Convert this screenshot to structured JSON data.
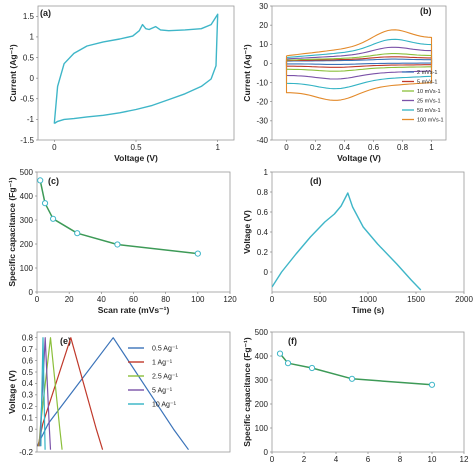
{
  "chart_data": [
    {
      "id": "a",
      "panel_label": "(a)",
      "type": "line",
      "xlabel": "Voltage (V)",
      "ylabel": "Current (Ag⁻¹)",
      "xlim": [
        -0.1,
        1.1
      ],
      "ylim": [
        -1.5,
        1.75
      ],
      "xticks": [
        "0",
        "0.5",
        "1"
      ],
      "yticks": [
        "-1.5",
        "-1",
        "-0.5",
        "0",
        "0.5",
        "1",
        "1.5"
      ],
      "color": "#3fb6c8",
      "series": [
        {
          "x": [
            0,
            0.02,
            0.06,
            0.12,
            0.2,
            0.3,
            0.4,
            0.48,
            0.52,
            0.54,
            0.56,
            0.58,
            0.62,
            0.65,
            0.7,
            0.8,
            0.9,
            0.96,
            1.0,
            0.99,
            0.96,
            0.9,
            0.8,
            0.7,
            0.6,
            0.5,
            0.4,
            0.3,
            0.2,
            0.12,
            0.06,
            0.02,
            0
          ],
          "y": [
            -1.1,
            -0.2,
            0.35,
            0.6,
            0.78,
            0.88,
            0.95,
            1.02,
            1.15,
            1.3,
            1.2,
            1.18,
            1.25,
            1.17,
            1.15,
            1.17,
            1.2,
            1.3,
            1.55,
            0.3,
            -0.02,
            -0.2,
            -0.38,
            -0.52,
            -0.66,
            -0.76,
            -0.84,
            -0.9,
            -0.94,
            -0.98,
            -1.0,
            -1.05,
            -1.1
          ]
        }
      ]
    },
    {
      "id": "b",
      "panel_label": "(b)",
      "type": "line",
      "xlabel": "Voltage (V)",
      "ylabel": "Current (Ag⁻¹)",
      "xlim": [
        -0.1,
        1.1
      ],
      "ylim": [
        -40,
        30
      ],
      "xticks": [
        "0",
        "0.2",
        "0.4",
        "0.6",
        "0.8",
        "1"
      ],
      "yticks": [
        "-40",
        "-30",
        "-20",
        "-10",
        "0",
        "10",
        "20",
        "30"
      ],
      "legend_position": "right",
      "series": [
        {
          "name": "2 mVs-1",
          "color": "#3b73b9",
          "amp": 1.5
        },
        {
          "name": "5 mVs-1",
          "color": "#c0392b",
          "amp": 3
        },
        {
          "name": "10 mVs-1",
          "color": "#8bbf3b",
          "amp": 5
        },
        {
          "name": "25 mVs-1",
          "color": "#7b52a8",
          "amp": 9
        },
        {
          "name": "50 mVs-1",
          "color": "#33b3c4",
          "amp": 14
        },
        {
          "name": "100 mVs-1",
          "color": "#e38a2b",
          "amp": 20
        }
      ]
    },
    {
      "id": "c",
      "panel_label": "(c)",
      "type": "line",
      "xlabel": "Scan rate (mVs⁻¹)",
      "ylabel": "Specific capacitance (Fg⁻¹)",
      "xlim": [
        0,
        120
      ],
      "ylim": [
        0,
        500
      ],
      "xticks": [
        "0",
        "20",
        "40",
        "60",
        "80",
        "100",
        "120"
      ],
      "yticks": [
        "0",
        "100",
        "200",
        "300",
        "400",
        "500"
      ],
      "color": "#3d9a57",
      "marker_color": "#3fb6c8",
      "series": [
        {
          "x": [
            2,
            5,
            10,
            25,
            50,
            100
          ],
          "y": [
            465,
            370,
            305,
            245,
            198,
            160
          ]
        }
      ]
    },
    {
      "id": "d",
      "panel_label": "(d)",
      "type": "line",
      "xlabel": "Time (s)",
      "ylabel": "Voltage (V)",
      "xlim": [
        0,
        2000
      ],
      "ylim": [
        -0.2,
        1.0
      ],
      "xticks": [
        "0",
        "500",
        "1000",
        "1500",
        "2000"
      ],
      "yticks": [
        "0",
        "0.2",
        "0.4",
        "0.6",
        "0.8",
        "1"
      ],
      "color": "#3fb6c8",
      "series": [
        {
          "x": [
            0,
            100,
            250,
            400,
            550,
            650,
            720,
            790,
            840,
            950,
            1100,
            1300,
            1450,
            1550
          ],
          "y": [
            -0.15,
            0.0,
            0.18,
            0.35,
            0.5,
            0.58,
            0.66,
            0.79,
            0.65,
            0.45,
            0.28,
            0.08,
            -0.08,
            -0.18
          ]
        }
      ]
    },
    {
      "id": "e",
      "panel_label": "(e)",
      "type": "line",
      "xlabel": "",
      "ylabel": "Voltage (V)",
      "xlim": [
        0,
        2000
      ],
      "ylim": [
        -0.2,
        0.85
      ],
      "xticks": [],
      "yticks": [
        "-0.2",
        "0",
        "0.1",
        "0.2",
        "0.3",
        "0.4",
        "0.5",
        "0.6",
        "0.7",
        "0.8"
      ],
      "legend_position": "right",
      "series": [
        {
          "name": "0.5 Ag⁻¹",
          "color": "#3b73b9",
          "tc": 790,
          "td": 780
        },
        {
          "name": "1 Ag⁻¹",
          "color": "#c0392b",
          "tc": 340,
          "td": 330
        },
        {
          "name": "2.5 Ag⁻¹",
          "color": "#8bbf3b",
          "tc": 120,
          "td": 120
        },
        {
          "name": "5 Ag⁻¹",
          "color": "#7b52a8",
          "tc": 55,
          "td": 55
        },
        {
          "name": "10 Ag⁻¹",
          "color": "#33b3c4",
          "tc": 22,
          "td": 22
        }
      ]
    },
    {
      "id": "f",
      "panel_label": "(f)",
      "type": "line",
      "xlabel": "",
      "ylabel": "Specific capacitance (Fg⁻¹)",
      "xlim": [
        0,
        12
      ],
      "ylim": [
        0,
        500
      ],
      "xticks": [
        "0",
        "2",
        "4",
        "6",
        "8",
        "10",
        "12"
      ],
      "yticks": [
        "0",
        "100",
        "200",
        "300",
        "400",
        "500"
      ],
      "color": "#3d9a57",
      "marker_color": "#3fb6c8",
      "series": [
        {
          "x": [
            0.5,
            1,
            2.5,
            5,
            10
          ],
          "y": [
            410,
            370,
            350,
            305,
            280
          ]
        }
      ]
    }
  ]
}
